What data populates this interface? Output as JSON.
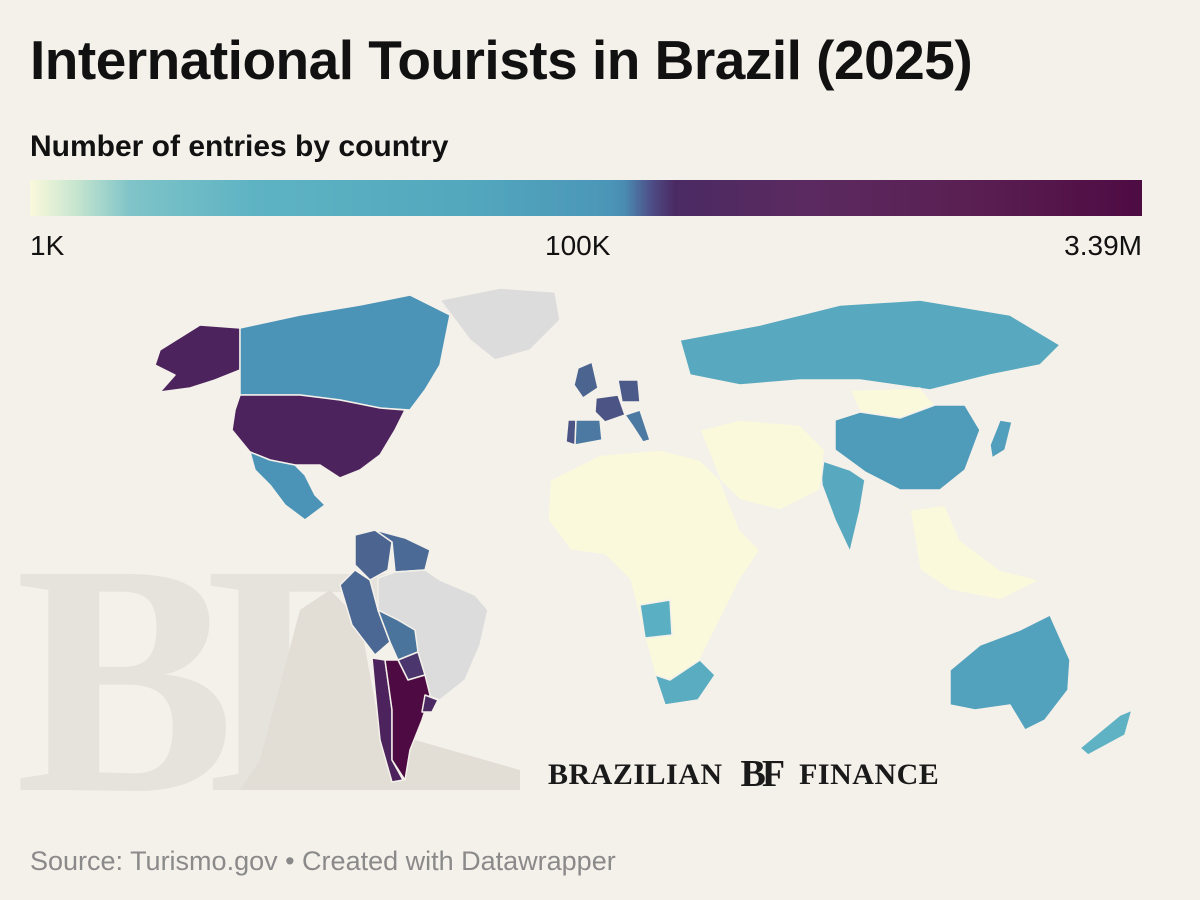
{
  "title": "International Tourists in Brazil (2025)",
  "subtitle": "Number of entries by country",
  "legend": {
    "min_label": "1K",
    "mid_label": "100K",
    "max_label": "3.39M",
    "scale": "log",
    "colors": [
      "#fbf9dc",
      "#5eb3c3",
      "#4b96b8",
      "#4b2a63",
      "#4e0b43"
    ]
  },
  "brand": {
    "left": "BRAZILIAN",
    "logo": "BF",
    "right": "FINANCE"
  },
  "watermark": "BF",
  "source": "Source: Turismo.gov • Created with Datawrapper",
  "chart_data": {
    "type": "choropleth",
    "metric": "entries",
    "no_data_color": "#dcdcdc",
    "regions": [
      {
        "name": "Argentina",
        "entries": 3390000
      },
      {
        "name": "Chile",
        "entries": 700000
      },
      {
        "name": "Uruguay",
        "entries": 450000
      },
      {
        "name": "Paraguay",
        "entries": 350000
      },
      {
        "name": "USA",
        "entries": 700000
      },
      {
        "name": "Alaska",
        "entries": 700000
      },
      {
        "name": "France",
        "entries": 200000
      },
      {
        "name": "Portugal",
        "entries": 200000
      },
      {
        "name": "Germany",
        "entries": 180000
      },
      {
        "name": "UK",
        "entries": 150000
      },
      {
        "name": "Colombia",
        "entries": 150000
      },
      {
        "name": "Peru",
        "entries": 140000
      },
      {
        "name": "Venezuela",
        "entries": 130000
      },
      {
        "name": "Bolivia",
        "entries": 110000
      },
      {
        "name": "Spain",
        "entries": 100000
      },
      {
        "name": "Italy",
        "entries": 100000
      },
      {
        "name": "Canada",
        "entries": 60000
      },
      {
        "name": "Mexico",
        "entries": 60000
      },
      {
        "name": "China",
        "entries": 40000
      },
      {
        "name": "Japan",
        "entries": 30000
      },
      {
        "name": "Australia",
        "entries": 25000
      },
      {
        "name": "Russia",
        "entries": 15000
      },
      {
        "name": "India",
        "entries": 15000
      },
      {
        "name": "South Africa",
        "entries": 12000
      },
      {
        "name": "Angola",
        "entries": 10000
      },
      {
        "name": "New Zealand",
        "entries": 8000
      },
      {
        "name": "Mongolia",
        "entries": 1000
      },
      {
        "name": "Brazil",
        "entries": null
      },
      {
        "name": "Greenland",
        "entries": null
      }
    ]
  }
}
